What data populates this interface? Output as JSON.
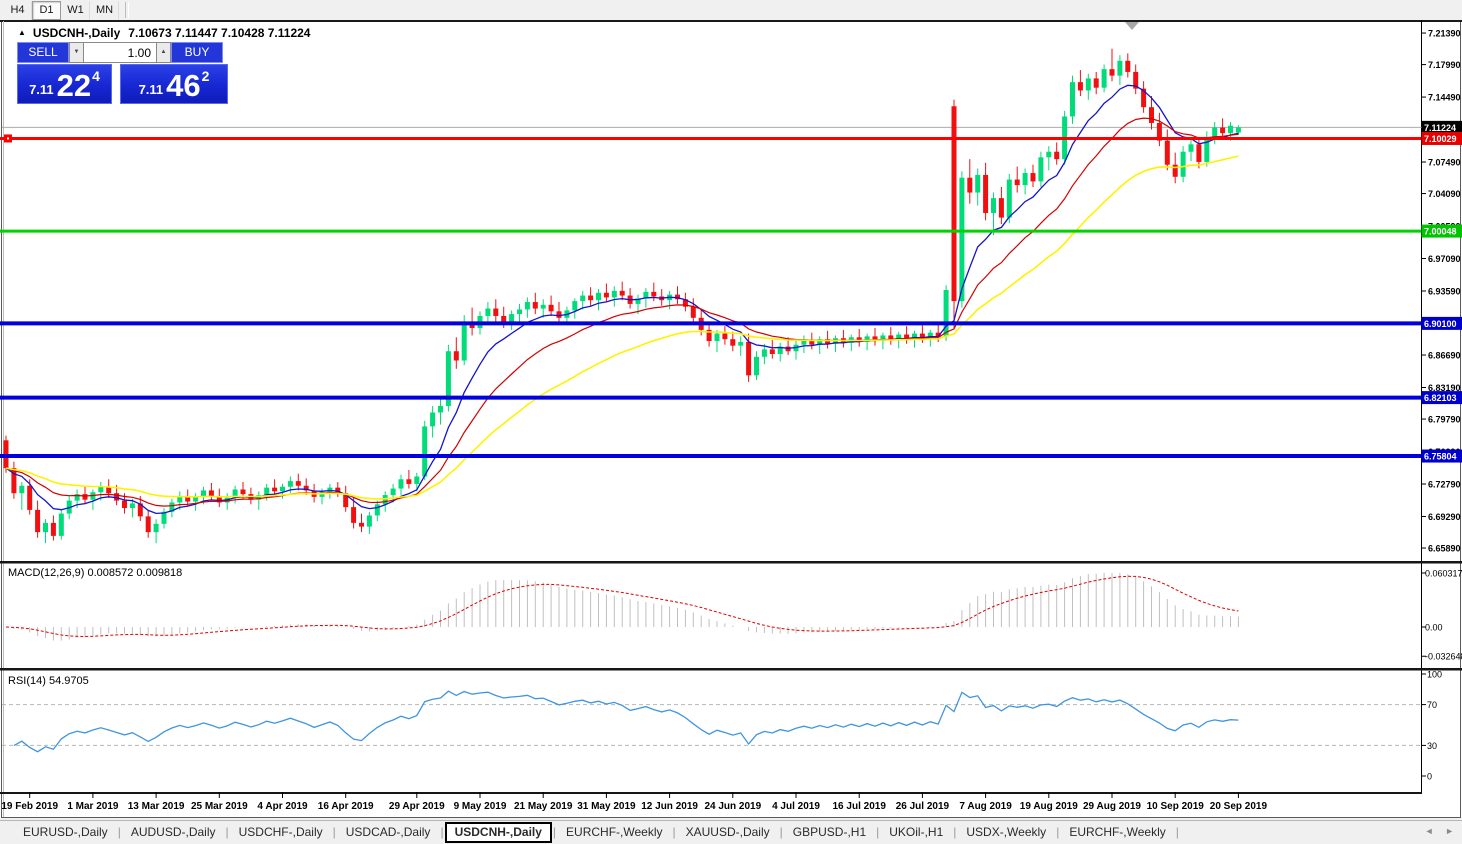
{
  "toolbar": {
    "timeframes": [
      {
        "label": "H4",
        "active": false
      },
      {
        "label": "D1",
        "active": true
      },
      {
        "label": "W1",
        "active": false
      },
      {
        "label": "MN",
        "active": false
      }
    ]
  },
  "chart": {
    "symbol_label": "USDCNH-,Daily",
    "ohlc": "7.10673 7.11447 7.10428 7.11224"
  },
  "trade": {
    "sell_label": "SELL",
    "buy_label": "BUY",
    "volume": "1.00",
    "sell": {
      "prefix": "7.11",
      "main": "22",
      "sup": "4"
    },
    "buy": {
      "prefix": "7.11",
      "main": "46",
      "sup": "2"
    }
  },
  "icons": {
    "collapse_up": "▲",
    "collapse_down": "▼",
    "spin_up": "▲",
    "spin_down": "▼",
    "nav_left": "◄",
    "nav_right": "►"
  },
  "bottom_tabs": {
    "tabs": [
      {
        "label": "EURUSD-,Daily",
        "active": false
      },
      {
        "label": "AUDUSD-,Daily",
        "active": false
      },
      {
        "label": "USDCHF-,Daily",
        "active": false
      },
      {
        "label": "USDCAD-,Daily",
        "active": false
      },
      {
        "label": "USDCNH-,Daily",
        "active": true
      },
      {
        "label": "EURCHF-,Weekly",
        "active": false
      },
      {
        "label": "XAUUSD-,Daily",
        "active": false
      },
      {
        "label": "GBPUSD-,H1",
        "active": false
      },
      {
        "label": "UKOil-,H1",
        "active": false
      },
      {
        "label": "USDX-,Weekly",
        "active": false
      },
      {
        "label": "EURCHF-,Weekly",
        "active": false
      }
    ]
  },
  "chart_data": {
    "type": "candlestick",
    "symbol": "USDCNH-",
    "timeframe": "Daily",
    "candle_colors": {
      "bull": "#00DC7A",
      "bear": "#F01010"
    },
    "price_range": {
      "top": 7.2258,
      "bottom": 6.646
    },
    "current_price": {
      "bid": 7.11224,
      "line_color": "#ABABAB"
    },
    "y_axis": {
      "ticks": [
        {
          "label": "7.21390",
          "v": 7.2139
        },
        {
          "label": "7.17990",
          "v": 7.1799
        },
        {
          "label": "7.14490",
          "v": 7.1449
        },
        {
          "label": "7.10990",
          "v": 7.1099
        },
        {
          "label": "7.07490",
          "v": 7.0749
        },
        {
          "label": "7.04090",
          "v": 7.0409
        },
        {
          "label": "7.00590",
          "v": 7.0059
        },
        {
          "label": "6.97090",
          "v": 6.9709
        },
        {
          "label": "6.93590",
          "v": 6.9359
        },
        {
          "label": "6.90090",
          "v": 6.9009
        },
        {
          "label": "6.86690",
          "v": 6.8669
        },
        {
          "label": "6.83190",
          "v": 6.8319
        },
        {
          "label": "6.79790",
          "v": 6.7979
        },
        {
          "label": "6.76290",
          "v": 6.7629
        },
        {
          "label": "6.72790",
          "v": 6.7279
        },
        {
          "label": "6.69290",
          "v": 6.6929
        },
        {
          "label": "6.65890",
          "v": 6.6589
        }
      ],
      "badges": [
        {
          "label": "7.11224",
          "v": 7.11224,
          "bg": "#000000"
        },
        {
          "label": "7.10029",
          "v": 7.10029,
          "bg": "#E60000"
        },
        {
          "label": "7.00048",
          "v": 7.00048,
          "bg": "#00C400"
        },
        {
          "label": "6.90100",
          "v": 6.901,
          "bg": "#0000CC"
        },
        {
          "label": "6.82103",
          "v": 6.82103,
          "bg": "#0000CC"
        },
        {
          "label": "6.75804",
          "v": 6.75804,
          "bg": "#0000CC"
        }
      ]
    },
    "levels": [
      {
        "price": 7.10029,
        "color": "#FF0000",
        "width": 3,
        "handle": true
      },
      {
        "price": 7.00048,
        "color": "#00D300",
        "width": 3,
        "handle": false
      },
      {
        "price": 6.901,
        "color": "#0000E0",
        "width": 4,
        "handle": false
      },
      {
        "price": 6.82103,
        "color": "#0000E0",
        "width": 4,
        "handle": false
      },
      {
        "price": 6.75804,
        "color": "#0000E0",
        "width": 4,
        "handle": false
      }
    ],
    "moving_averages": [
      {
        "name": "ma-fast",
        "period": 8,
        "color": "#1414CC",
        "width": 1.3
      },
      {
        "name": "ma-mid",
        "period": 17,
        "color": "#D40000",
        "width": 1.2
      },
      {
        "name": "ma-slow",
        "period": 34,
        "color": "#FFF200",
        "width": 1.6
      }
    ],
    "indicators": [
      {
        "name": "MACD",
        "label": "MACD(12,26,9) 0.008572 0.009818",
        "params": [
          12,
          26,
          9
        ],
        "current_macd": 0.008572,
        "current_signal": 0.009818,
        "histogram_color": "#BFBFBF",
        "signal_color": "#E00000",
        "scale_ticks": [
          {
            "label": "0.060317",
            "v": 0.060317
          },
          {
            "label": "0.00",
            "v": 0
          },
          {
            "label": "-0.032648",
            "v": -0.032648
          }
        ]
      },
      {
        "name": "RSI",
        "label": "RSI(14) 54.9705",
        "period": 14,
        "current": 54.9705,
        "line_color": "#3F95E0",
        "levels": [
          70,
          30
        ],
        "scale_ticks": [
          {
            "label": "100",
            "v": 100
          },
          {
            "label": "70",
            "v": 70
          },
          {
            "label": "30",
            "v": 30
          },
          {
            "label": "0",
            "v": 0
          }
        ]
      }
    ],
    "x_axis": {
      "labels": [
        {
          "label": "19 Feb 2019",
          "i": 3
        },
        {
          "label": "1 Mar 2019",
          "i": 11
        },
        {
          "label": "13 Mar 2019",
          "i": 19
        },
        {
          "label": "25 Mar 2019",
          "i": 27
        },
        {
          "label": "4 Apr 2019",
          "i": 35
        },
        {
          "label": "16 Apr 2019",
          "i": 43
        },
        {
          "label": "29 Apr 2019",
          "i": 52
        },
        {
          "label": "9 May 2019",
          "i": 60
        },
        {
          "label": "21 May 2019",
          "i": 68
        },
        {
          "label": "31 May 2019",
          "i": 76
        },
        {
          "label": "12 Jun 2019",
          "i": 84
        },
        {
          "label": "24 Jun 2019",
          "i": 92
        },
        {
          "label": "4 Jul 2019",
          "i": 100
        },
        {
          "label": "16 Jul 2019",
          "i": 108
        },
        {
          "label": "26 Jul 2019",
          "i": 116
        },
        {
          "label": "7 Aug 2019",
          "i": 124
        },
        {
          "label": "19 Aug 2019",
          "i": 132
        },
        {
          "label": "29 Aug 2019",
          "i": 140
        },
        {
          "label": "10 Sep 2019",
          "i": 148
        },
        {
          "label": "20 Sep 2019",
          "i": 156
        }
      ]
    },
    "candles": [
      [
        6.775,
        6.78,
        6.74,
        6.745
      ],
      [
        6.745,
        6.752,
        6.712,
        6.718
      ],
      [
        6.718,
        6.73,
        6.7,
        6.726
      ],
      [
        6.726,
        6.733,
        6.695,
        6.7
      ],
      [
        6.7,
        6.71,
        6.67,
        6.676
      ],
      [
        6.676,
        6.69,
        6.664,
        6.686
      ],
      [
        6.686,
        6.694,
        6.667,
        6.672
      ],
      [
        6.672,
        6.7,
        6.668,
        6.696
      ],
      [
        6.696,
        6.715,
        6.69,
        6.71
      ],
      [
        6.71,
        6.722,
        6.702,
        6.717
      ],
      [
        6.717,
        6.726,
        6.706,
        6.711
      ],
      [
        6.711,
        6.722,
        6.7,
        6.719
      ],
      [
        6.719,
        6.73,
        6.71,
        6.725
      ],
      [
        6.725,
        6.733,
        6.713,
        6.718
      ],
      [
        6.718,
        6.727,
        6.705,
        6.71
      ],
      [
        6.71,
        6.718,
        6.696,
        6.702
      ],
      [
        6.702,
        6.712,
        6.692,
        6.707
      ],
      [
        6.707,
        6.715,
        6.688,
        6.693
      ],
      [
        6.693,
        6.7,
        6.67,
        6.676
      ],
      [
        6.676,
        6.69,
        6.664,
        6.685
      ],
      [
        6.685,
        6.702,
        6.68,
        6.698
      ],
      [
        6.698,
        6.712,
        6.692,
        6.708
      ],
      [
        6.708,
        6.72,
        6.7,
        6.715
      ],
      [
        6.715,
        6.722,
        6.704,
        6.709
      ],
      [
        6.709,
        6.718,
        6.699,
        6.714
      ],
      [
        6.714,
        6.725,
        6.706,
        6.721
      ],
      [
        6.721,
        6.729,
        6.71,
        6.715
      ],
      [
        6.715,
        6.723,
        6.703,
        6.708
      ],
      [
        6.708,
        6.718,
        6.7,
        6.713
      ],
      [
        6.713,
        6.726,
        6.707,
        6.722
      ],
      [
        6.722,
        6.73,
        6.712,
        6.717
      ],
      [
        6.717,
        6.724,
        6.706,
        6.711
      ],
      [
        6.711,
        6.72,
        6.7,
        6.716
      ],
      [
        6.716,
        6.728,
        6.71,
        6.724
      ],
      [
        6.724,
        6.733,
        6.716,
        6.72
      ],
      [
        6.72,
        6.728,
        6.712,
        6.725
      ],
      [
        6.725,
        6.736,
        6.718,
        6.731
      ],
      [
        6.731,
        6.739,
        6.721,
        6.726
      ],
      [
        6.726,
        6.734,
        6.716,
        6.721
      ],
      [
        6.721,
        6.728,
        6.708,
        6.714
      ],
      [
        6.714,
        6.723,
        6.706,
        6.719
      ],
      [
        6.719,
        6.728,
        6.712,
        6.724
      ],
      [
        6.724,
        6.73,
        6.714,
        6.718
      ],
      [
        6.718,
        6.726,
        6.698,
        6.703
      ],
      [
        6.703,
        6.713,
        6.68,
        6.686
      ],
      [
        6.686,
        6.696,
        6.676,
        6.682
      ],
      [
        6.682,
        6.698,
        6.674,
        6.694
      ],
      [
        6.694,
        6.71,
        6.688,
        6.706
      ],
      [
        6.706,
        6.72,
        6.698,
        6.716
      ],
      [
        6.716,
        6.728,
        6.708,
        6.723
      ],
      [
        6.723,
        6.738,
        6.716,
        6.733
      ],
      [
        6.733,
        6.743,
        6.723,
        6.728
      ],
      [
        6.728,
        6.74,
        6.72,
        6.736
      ],
      [
        6.736,
        6.796,
        6.732,
        6.79
      ],
      [
        6.79,
        6.812,
        6.778,
        6.805
      ],
      [
        6.805,
        6.82,
        6.792,
        6.812
      ],
      [
        6.812,
        6.878,
        6.806,
        6.871
      ],
      [
        6.871,
        6.886,
        6.852,
        6.861
      ],
      [
        6.861,
        6.91,
        6.856,
        6.903
      ],
      [
        6.903,
        6.918,
        6.888,
        6.896
      ],
      [
        6.896,
        6.914,
        6.889,
        6.909
      ],
      [
        6.909,
        6.924,
        6.9,
        6.917
      ],
      [
        6.917,
        6.927,
        6.903,
        6.909
      ],
      [
        6.909,
        6.919,
        6.896,
        6.903
      ],
      [
        6.903,
        6.915,
        6.894,
        6.911
      ],
      [
        6.911,
        6.922,
        6.902,
        6.916
      ],
      [
        6.916,
        6.929,
        6.907,
        6.924
      ],
      [
        6.924,
        6.934,
        6.911,
        6.917
      ],
      [
        6.917,
        6.927,
        6.907,
        6.921
      ],
      [
        6.921,
        6.931,
        6.909,
        6.914
      ],
      [
        6.914,
        6.924,
        6.901,
        6.907
      ],
      [
        6.907,
        6.919,
        6.899,
        6.915
      ],
      [
        6.915,
        6.928,
        6.906,
        6.925
      ],
      [
        6.925,
        6.936,
        6.916,
        6.931
      ],
      [
        6.931,
        6.94,
        6.92,
        6.926
      ],
      [
        6.926,
        6.938,
        6.915,
        6.934
      ],
      [
        6.934,
        6.944,
        6.924,
        6.929
      ],
      [
        6.929,
        6.941,
        6.919,
        6.936
      ],
      [
        6.936,
        6.946,
        6.926,
        6.931
      ],
      [
        6.931,
        6.939,
        6.917,
        6.922
      ],
      [
        6.922,
        6.932,
        6.911,
        6.928
      ],
      [
        6.928,
        6.939,
        6.918,
        6.935
      ],
      [
        6.935,
        6.945,
        6.925,
        6.93
      ],
      [
        6.93,
        6.938,
        6.92,
        6.926
      ],
      [
        6.926,
        6.936,
        6.916,
        6.932
      ],
      [
        6.932,
        6.941,
        6.922,
        6.927
      ],
      [
        6.927,
        6.934,
        6.914,
        6.919
      ],
      [
        6.919,
        6.928,
        6.902,
        6.907
      ],
      [
        6.907,
        6.916,
        6.888,
        6.894
      ],
      [
        6.894,
        6.903,
        6.876,
        6.882
      ],
      [
        6.882,
        6.894,
        6.87,
        6.89
      ],
      [
        6.89,
        6.898,
        6.878,
        6.884
      ],
      [
        6.884,
        6.892,
        6.871,
        6.877
      ],
      [
        6.877,
        6.887,
        6.866,
        6.881
      ],
      [
        6.881,
        6.89,
        6.838,
        6.845
      ],
      [
        6.845,
        6.871,
        6.84,
        6.865
      ],
      [
        6.865,
        6.879,
        6.857,
        6.873
      ],
      [
        6.873,
        6.883,
        6.863,
        6.868
      ],
      [
        6.868,
        6.88,
        6.86,
        6.876
      ],
      [
        6.876,
        6.886,
        6.867,
        6.871
      ],
      [
        6.871,
        6.882,
        6.862,
        6.878
      ],
      [
        6.878,
        6.888,
        6.869,
        6.883
      ],
      [
        6.883,
        6.891,
        6.873,
        6.878
      ],
      [
        6.878,
        6.887,
        6.868,
        6.884
      ],
      [
        6.884,
        6.893,
        6.874,
        6.879
      ],
      [
        6.879,
        6.888,
        6.87,
        6.885
      ],
      [
        6.885,
        6.894,
        6.875,
        6.88
      ],
      [
        6.88,
        6.889,
        6.871,
        6.886
      ],
      [
        6.886,
        6.895,
        6.876,
        6.881
      ],
      [
        6.881,
        6.89,
        6.872,
        6.887
      ],
      [
        6.887,
        6.896,
        6.877,
        6.882
      ],
      [
        6.882,
        6.891,
        6.873,
        6.888
      ],
      [
        6.888,
        6.897,
        6.878,
        6.883
      ],
      [
        6.883,
        6.892,
        6.874,
        6.889
      ],
      [
        6.889,
        6.898,
        6.879,
        6.884
      ],
      [
        6.884,
        6.893,
        6.875,
        6.89
      ],
      [
        6.89,
        6.899,
        6.88,
        6.885
      ],
      [
        6.885,
        6.894,
        6.876,
        6.891
      ],
      [
        6.891,
        6.9,
        6.881,
        6.887
      ],
      [
        6.887,
        6.942,
        6.882,
        6.937
      ],
      [
        7.135,
        7.142,
        6.896,
        6.925
      ],
      [
        6.925,
        7.065,
        6.918,
        7.058
      ],
      [
        7.058,
        7.078,
        7.03,
        7.042
      ],
      [
        7.042,
        7.068,
        7.028,
        7.061
      ],
      [
        7.061,
        7.074,
        7.012,
        7.02
      ],
      [
        7.02,
        7.042,
        6.996,
        7.036
      ],
      [
        7.036,
        7.048,
        7.008,
        7.015
      ],
      [
        7.015,
        7.062,
        7.009,
        7.056
      ],
      [
        7.056,
        7.07,
        7.042,
        7.05
      ],
      [
        7.05,
        7.068,
        7.04,
        7.063
      ],
      [
        7.063,
        7.072,
        7.048,
        7.054
      ],
      [
        7.054,
        7.086,
        7.048,
        7.08
      ],
      [
        7.08,
        7.092,
        7.066,
        7.086
      ],
      [
        7.086,
        7.096,
        7.072,
        7.078
      ],
      [
        7.078,
        7.13,
        7.072,
        7.124
      ],
      [
        7.124,
        7.168,
        7.116,
        7.161
      ],
      [
        7.161,
        7.174,
        7.146,
        7.152
      ],
      [
        7.152,
        7.17,
        7.142,
        7.165
      ],
      [
        7.165,
        7.172,
        7.148,
        7.155
      ],
      [
        7.155,
        7.18,
        7.15,
        7.175
      ],
      [
        7.175,
        7.197,
        7.162,
        7.168
      ],
      [
        7.168,
        7.19,
        7.158,
        7.184
      ],
      [
        7.184,
        7.192,
        7.166,
        7.172
      ],
      [
        7.172,
        7.18,
        7.148,
        7.154
      ],
      [
        7.154,
        7.162,
        7.128,
        7.134
      ],
      [
        7.134,
        7.146,
        7.11,
        7.117
      ],
      [
        7.117,
        7.128,
        7.092,
        7.098
      ],
      [
        7.098,
        7.11,
        7.066,
        7.072
      ],
      [
        7.072,
        7.085,
        7.052,
        7.059
      ],
      [
        7.059,
        7.092,
        7.053,
        7.086
      ],
      [
        7.086,
        7.1,
        7.076,
        7.094
      ],
      [
        7.094,
        7.102,
        7.068,
        7.075
      ],
      [
        7.075,
        7.108,
        7.07,
        7.102
      ],
      [
        7.102,
        7.118,
        7.094,
        7.112
      ],
      [
        7.112,
        7.122,
        7.1,
        7.106
      ],
      [
        7.106,
        7.118,
        7.098,
        7.114
      ],
      [
        7.1067,
        7.1145,
        7.1043,
        7.1122
      ]
    ]
  }
}
